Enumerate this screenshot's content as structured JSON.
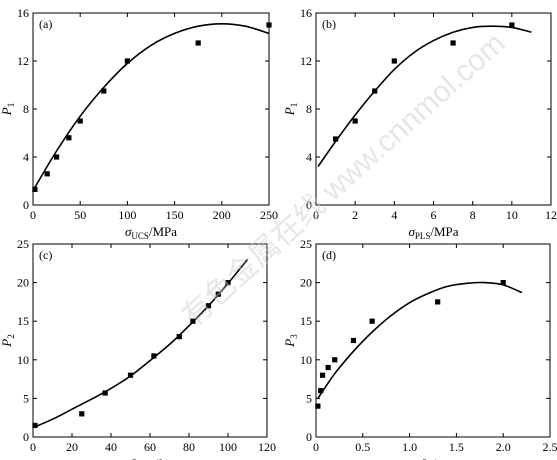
{
  "watermark": "有色金属在线 www.cnnmol.com",
  "chart_data": [
    {
      "type": "scatter",
      "panel_label": "(a)",
      "xlabel": {
        "main": "σ",
        "sub": "UCS",
        "tail": "/MPa"
      },
      "ylabel": {
        "main": "P",
        "sub": "1"
      },
      "xlim": [
        0,
        250
      ],
      "ylim": [
        0,
        16
      ],
      "xticks": [
        0,
        50,
        100,
        150,
        200,
        250
      ],
      "yticks": [
        0,
        4,
        8,
        12,
        16
      ],
      "grid": false,
      "series": [
        {
          "kind": "points",
          "x": [
            2,
            15,
            25,
            38,
            50,
            75,
            100,
            175,
            250
          ],
          "y": [
            1.3,
            2.6,
            4.0,
            5.6,
            7.0,
            9.5,
            12.0,
            13.5,
            15.0
          ]
        },
        {
          "kind": "fit",
          "x": [
            0,
            25,
            50,
            75,
            100,
            125,
            150,
            175,
            200,
            225,
            250
          ],
          "y": [
            1.2,
            4.5,
            7.4,
            9.8,
            11.8,
            13.3,
            14.3,
            14.9,
            15.1,
            14.9,
            14.3
          ]
        }
      ]
    },
    {
      "type": "scatter",
      "panel_label": "(b)",
      "xlabel": {
        "main": "σ",
        "sub": "PLS",
        "tail": "/MPa"
      },
      "ylabel": {
        "main": "P",
        "sub": "1"
      },
      "xlim": [
        0,
        12
      ],
      "ylim": [
        0,
        16
      ],
      "xticks": [
        0,
        2,
        4,
        6,
        8,
        10,
        12
      ],
      "yticks": [
        0,
        4,
        8,
        12,
        16
      ],
      "grid": false,
      "series": [
        {
          "kind": "points",
          "x": [
            1,
            2,
            3,
            4,
            7,
            10
          ],
          "y": [
            5.5,
            7.0,
            9.5,
            12.0,
            13.5,
            15.0
          ]
        },
        {
          "kind": "fit",
          "x": [
            0.1,
            1,
            2,
            3,
            4,
            5,
            6,
            7,
            8,
            9,
            10,
            11
          ],
          "y": [
            3.2,
            5.3,
            7.5,
            9.5,
            11.3,
            12.7,
            13.7,
            14.4,
            14.8,
            14.9,
            14.8,
            14.4
          ]
        }
      ]
    },
    {
      "type": "scatter",
      "panel_label": "(c)",
      "xlabel": {
        "main": "I",
        "sub": "RQD",
        "tail": "/%"
      },
      "ylabel": {
        "main": "P",
        "sub": "2"
      },
      "xlim": [
        0,
        120
      ],
      "ylim": [
        0,
        25
      ],
      "xticks": [
        0,
        20,
        40,
        60,
        80,
        100,
        120
      ],
      "yticks": [
        0,
        5,
        10,
        15,
        20,
        25
      ],
      "grid": false,
      "series": [
        {
          "kind": "points",
          "x": [
            1,
            25,
            37,
            50,
            62,
            75,
            82,
            90,
            95,
            100
          ],
          "y": [
            1.5,
            3.0,
            5.7,
            8.0,
            10.5,
            13.0,
            15.0,
            17.0,
            18.5,
            20.0
          ]
        },
        {
          "kind": "fit",
          "x": [
            0,
            10,
            20,
            30,
            40,
            50,
            60,
            70,
            80,
            90,
            100,
            110
          ],
          "y": [
            1.2,
            2.3,
            3.6,
            4.9,
            6.3,
            7.9,
            9.9,
            12.0,
            14.4,
            17.0,
            19.9,
            23.0
          ]
        }
      ]
    },
    {
      "type": "scatter",
      "panel_label": "(d)",
      "xlabel": {
        "main": "J",
        "sub": "V",
        "tail": "/m"
      },
      "ylabel": {
        "main": "P",
        "sub": "3"
      },
      "xlim": [
        0,
        2.5
      ],
      "ylim": [
        0,
        25
      ],
      "xticks": [
        "0",
        "0.5",
        "1.0",
        "1.5",
        "2.0",
        "2.5"
      ],
      "yticks": [
        0,
        5,
        10,
        15,
        20,
        25
      ],
      "grid": false,
      "series": [
        {
          "kind": "points",
          "x": [
            0.02,
            0.05,
            0.07,
            0.13,
            0.2,
            0.4,
            0.6,
            1.3,
            2.0
          ],
          "y": [
            4.0,
            6.0,
            8.0,
            9.0,
            10.0,
            12.5,
            15.0,
            17.5,
            20.0
          ]
        },
        {
          "kind": "fit",
          "x": [
            0.02,
            0.2,
            0.4,
            0.6,
            0.8,
            1.0,
            1.2,
            1.4,
            1.6,
            1.8,
            2.0,
            2.2
          ],
          "y": [
            5.0,
            8.2,
            11.1,
            13.6,
            15.7,
            17.4,
            18.6,
            19.5,
            19.9,
            20.0,
            19.7,
            18.7
          ]
        }
      ]
    }
  ]
}
